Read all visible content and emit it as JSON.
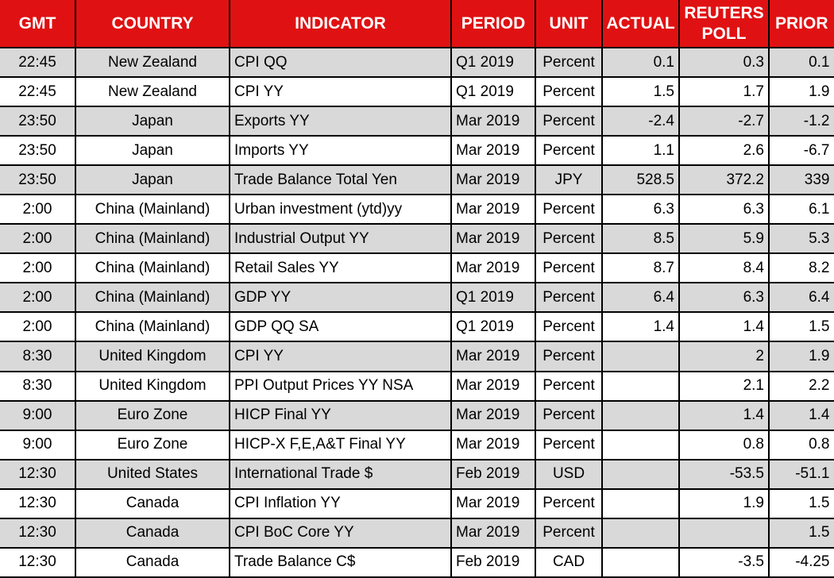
{
  "colors": {
    "header_bg": "#E01112",
    "header_text": "#FFFFFF",
    "row_alt_bg": "#D9D9D9",
    "row_bg": "#FFFFFF",
    "grid": "#000000",
    "body_text": "#000000"
  },
  "table": {
    "columns": [
      {
        "key": "gmt",
        "label": "GMT",
        "align": "center"
      },
      {
        "key": "country",
        "label": "COUNTRY",
        "align": "center"
      },
      {
        "key": "indicator",
        "label": "INDICATOR",
        "align": "left"
      },
      {
        "key": "period",
        "label": "PERIOD",
        "align": "left"
      },
      {
        "key": "unit",
        "label": "UNIT",
        "align": "center"
      },
      {
        "key": "actual",
        "label": "ACTUAL",
        "align": "right"
      },
      {
        "key": "reuters-poll",
        "label": "REUTERS POLL",
        "align": "right"
      },
      {
        "key": "prior",
        "label": "PRIOR",
        "align": "right"
      }
    ],
    "rows": [
      [
        "22:45",
        "New Zealand",
        "CPI QQ",
        "Q1 2019",
        "Percent",
        "0.1",
        "0.3",
        "0.1"
      ],
      [
        "22:45",
        "New Zealand",
        "CPI YY",
        "Q1 2019",
        "Percent",
        "1.5",
        "1.7",
        "1.9"
      ],
      [
        "23:50",
        "Japan",
        "Exports YY",
        "Mar 2019",
        "Percent",
        "-2.4",
        "-2.7",
        "-1.2"
      ],
      [
        "23:50",
        "Japan",
        "Imports YY",
        "Mar 2019",
        "Percent",
        "1.1",
        "2.6",
        "-6.7"
      ],
      [
        "23:50",
        "Japan",
        "Trade Balance Total Yen",
        "Mar 2019",
        "JPY",
        "528.5",
        "372.2",
        "339"
      ],
      [
        "2:00",
        "China (Mainland)",
        "Urban investment (ytd)yy",
        "Mar 2019",
        "Percent",
        "6.3",
        "6.3",
        "6.1"
      ],
      [
        "2:00",
        "China (Mainland)",
        "Industrial Output YY",
        "Mar 2019",
        "Percent",
        "8.5",
        "5.9",
        "5.3"
      ],
      [
        "2:00",
        "China (Mainland)",
        "Retail Sales YY",
        "Mar 2019",
        "Percent",
        "8.7",
        "8.4",
        "8.2"
      ],
      [
        "2:00",
        "China (Mainland)",
        "GDP YY",
        "Q1 2019",
        "Percent",
        "6.4",
        "6.3",
        "6.4"
      ],
      [
        "2:00",
        "China (Mainland)",
        "GDP QQ SA",
        "Q1 2019",
        "Percent",
        "1.4",
        "1.4",
        "1.5"
      ],
      [
        "8:30",
        "United Kingdom",
        "CPI YY",
        "Mar 2019",
        "Percent",
        "",
        "2",
        "1.9"
      ],
      [
        "8:30",
        "United Kingdom",
        "PPI Output Prices YY NSA",
        "Mar 2019",
        "Percent",
        "",
        "2.1",
        "2.2"
      ],
      [
        "9:00",
        "Euro Zone",
        "HICP Final YY",
        "Mar 2019",
        "Percent",
        "",
        "1.4",
        "1.4"
      ],
      [
        "9:00",
        "Euro Zone",
        "HICP-X F,E,A&T Final YY",
        "Mar 2019",
        "Percent",
        "",
        "0.8",
        "0.8"
      ],
      [
        "12:30",
        "United States",
        "International Trade $",
        "Feb 2019",
        "USD",
        "",
        "-53.5",
        "-51.1"
      ],
      [
        "12:30",
        "Canada",
        "CPI Inflation YY",
        "Mar 2019",
        "Percent",
        "",
        "1.9",
        "1.5"
      ],
      [
        "12:30",
        "Canada",
        "CPI BoC Core YY",
        "Mar 2019",
        "Percent",
        "",
        "",
        "1.5"
      ],
      [
        "12:30",
        "Canada",
        "Trade Balance C$",
        "Feb 2019",
        "CAD",
        "",
        "-3.5",
        "-4.25"
      ]
    ]
  }
}
